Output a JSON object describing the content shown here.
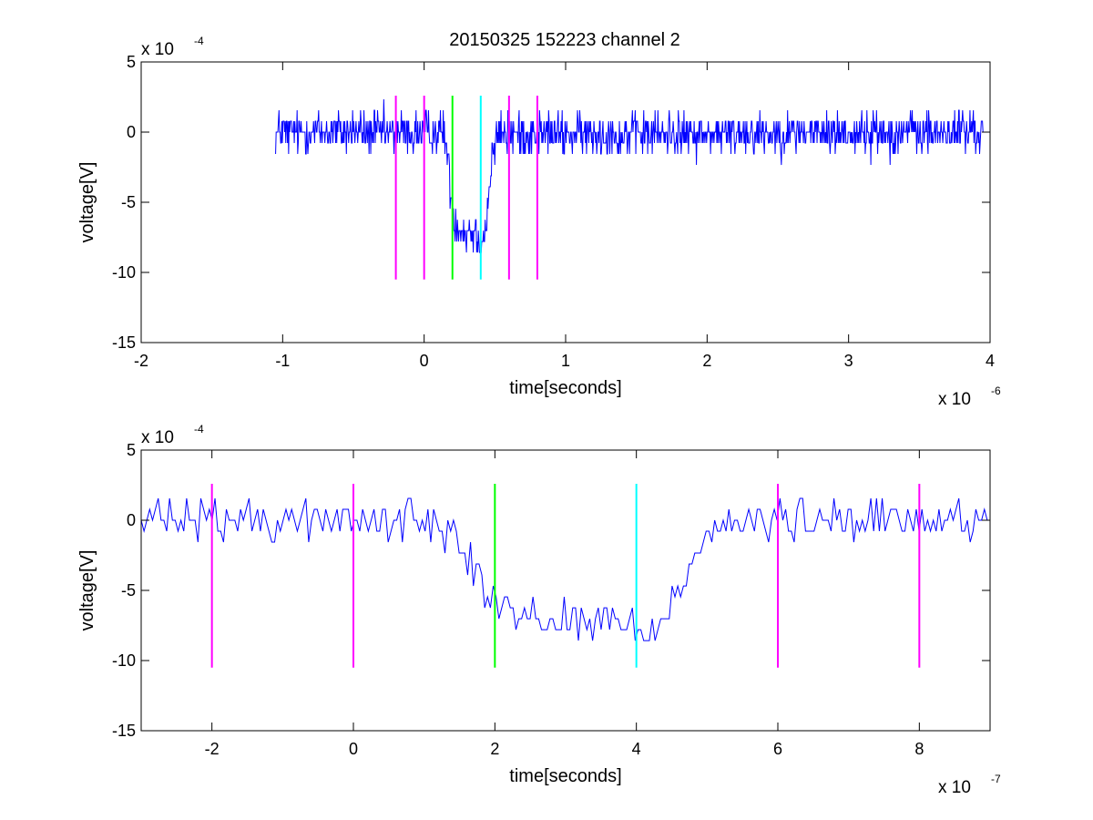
{
  "figure": {
    "title": "20150325 152223 channel 2"
  },
  "chart_data": [
    {
      "type": "line",
      "xlabel": "time[seconds]",
      "ylabel": "voltage[V]",
      "x_exponent_base": "x 10",
      "x_exponent_power": "-6",
      "y_exponent_base": "x 10",
      "y_exponent_power": "-4",
      "xlim": [
        -2,
        4
      ],
      "ylim": [
        -15,
        5
      ],
      "xticks": [
        -2,
        -1,
        0,
        1,
        2,
        3,
        4
      ],
      "xtick_labels": [
        "-2",
        "-1",
        "0",
        "1",
        "2",
        "3",
        "4"
      ],
      "yticks": [
        -15,
        -10,
        -5,
        0,
        5
      ],
      "ytick_labels": [
        "-15",
        "-10",
        "-5",
        "0",
        "5"
      ],
      "signal": {
        "color": "#0000ff",
        "x_start": -1.05,
        "x_end": 3.95,
        "samples": 1250,
        "baseline": 0,
        "noise": 0.95,
        "shape": [
          [
            -1.05,
            0
          ],
          [
            0.14,
            0
          ],
          [
            0.17,
            -2.2
          ],
          [
            0.19,
            -4.5
          ],
          [
            0.21,
            -6.2
          ],
          [
            0.24,
            -6.8
          ],
          [
            0.3,
            -7.0
          ],
          [
            0.36,
            -7.2
          ],
          [
            0.4,
            -7.6
          ],
          [
            0.43,
            -7.2
          ],
          [
            0.45,
            -5.0
          ],
          [
            0.47,
            -3.0
          ],
          [
            0.49,
            -1.2
          ],
          [
            0.53,
            -0.2
          ],
          [
            3.95,
            0
          ]
        ]
      },
      "markers": [
        {
          "x": -0.2,
          "y_from": -10.5,
          "y_to": 2.6,
          "color": "#ff00ff"
        },
        {
          "x": 0.0,
          "y_from": -10.5,
          "y_to": 2.6,
          "color": "#ff00ff"
        },
        {
          "x": 0.2,
          "y_from": -10.5,
          "y_to": 2.6,
          "color": "#00ff00"
        },
        {
          "x": 0.4,
          "y_from": -10.5,
          "y_to": 2.6,
          "color": "#00ffff"
        },
        {
          "x": 0.6,
          "y_from": -10.5,
          "y_to": 2.6,
          "color": "#ff00ff"
        },
        {
          "x": 0.8,
          "y_from": -10.5,
          "y_to": 2.6,
          "color": "#ff00ff"
        }
      ]
    },
    {
      "type": "line",
      "xlabel": "time[seconds]",
      "ylabel": "voltage[V]",
      "x_exponent_base": "x 10",
      "x_exponent_power": "-7",
      "y_exponent_base": "x 10",
      "y_exponent_power": "-4",
      "xlim": [
        -3,
        9
      ],
      "ylim": [
        -15,
        5
      ],
      "xticks": [
        -2,
        0,
        2,
        4,
        6,
        8
      ],
      "xtick_labels": [
        "-2",
        "0",
        "2",
        "4",
        "6",
        "8"
      ],
      "yticks": [
        -15,
        -10,
        -5,
        0,
        5
      ],
      "ytick_labels": [
        "-15",
        "-10",
        "-5",
        "0",
        "5"
      ],
      "signal": {
        "color": "#0000ff",
        "x_start": -3,
        "x_end": 9,
        "samples": 300,
        "baseline": 0,
        "noise": 0.95,
        "shape": [
          [
            -3,
            0
          ],
          [
            1.4,
            0
          ],
          [
            1.7,
            -3.0
          ],
          [
            1.9,
            -5.2
          ],
          [
            2.1,
            -6.5
          ],
          [
            2.6,
            -7.0
          ],
          [
            3.2,
            -7.1
          ],
          [
            3.8,
            -7.4
          ],
          [
            4.2,
            -7.6
          ],
          [
            4.4,
            -7.0
          ],
          [
            4.6,
            -4.5
          ],
          [
            4.8,
            -2.2
          ],
          [
            5.1,
            -0.6
          ],
          [
            5.6,
            -0.2
          ],
          [
            9,
            0
          ]
        ]
      },
      "markers": [
        {
          "x": -2,
          "y_from": -10.5,
          "y_to": 2.6,
          "color": "#ff00ff"
        },
        {
          "x": 0,
          "y_from": -10.5,
          "y_to": 2.6,
          "color": "#ff00ff"
        },
        {
          "x": 2,
          "y_from": -10.5,
          "y_to": 2.6,
          "color": "#00ff00"
        },
        {
          "x": 4,
          "y_from": -10.5,
          "y_to": 2.6,
          "color": "#00ffff"
        },
        {
          "x": 6,
          "y_from": -10.5,
          "y_to": 2.6,
          "color": "#ff00ff"
        },
        {
          "x": 8,
          "y_from": -10.5,
          "y_to": 2.6,
          "color": "#ff00ff"
        }
      ]
    }
  ]
}
